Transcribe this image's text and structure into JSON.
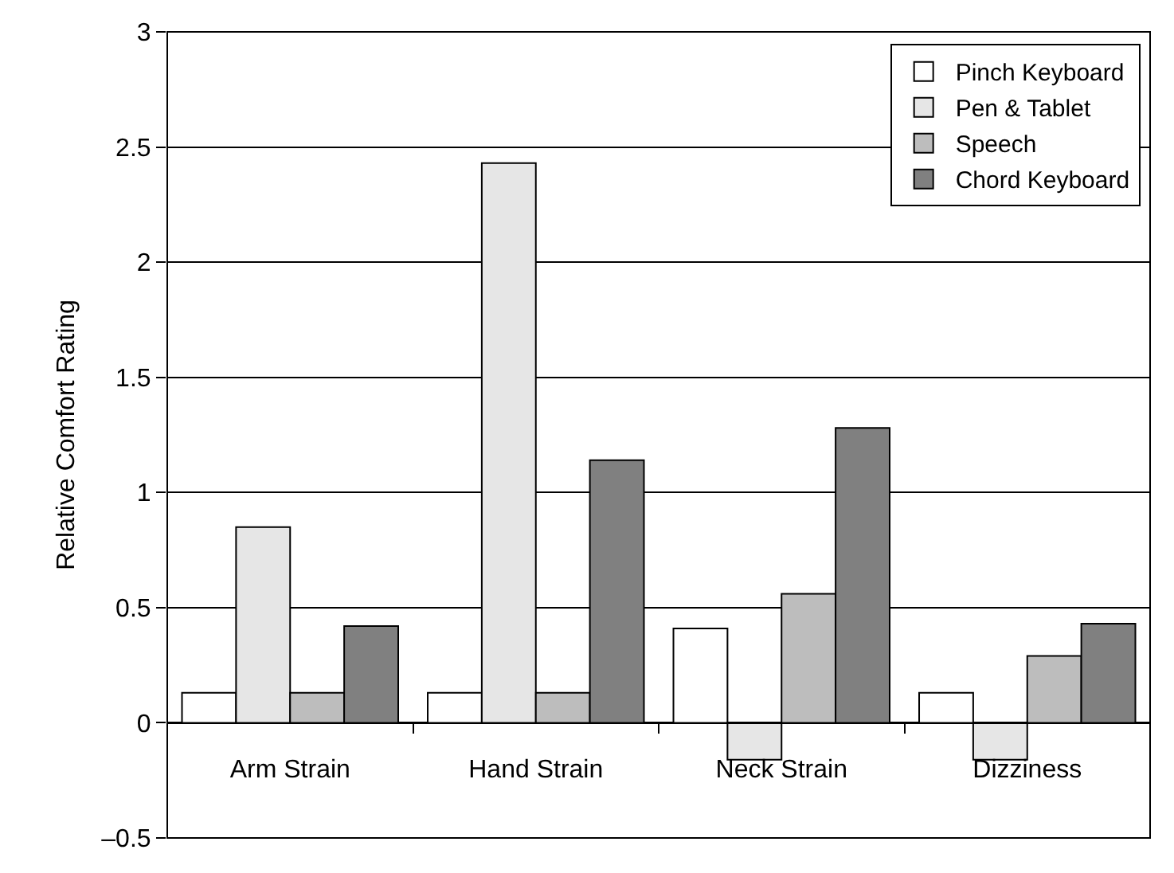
{
  "chart_data": {
    "type": "bar",
    "ylabel": "Relative Comfort Rating",
    "categories": [
      "Arm Strain",
      "Hand Strain",
      "Neck Strain",
      "Dizziness"
    ],
    "series": [
      {
        "name": "Pinch Keyboard",
        "color": "#ffffff",
        "values": [
          0.13,
          0.13,
          0.41,
          0.13
        ]
      },
      {
        "name": "Pen & Tablet",
        "color": "#e6e6e6",
        "values": [
          0.85,
          2.43,
          -0.16,
          -0.16
        ]
      },
      {
        "name": "Speech",
        "color": "#bdbdbd",
        "values": [
          0.13,
          0.13,
          0.56,
          0.29
        ]
      },
      {
        "name": "Chord Keyboard",
        "color": "#808080",
        "values": [
          0.42,
          1.14,
          1.28,
          0.43
        ]
      }
    ],
    "ylim": [
      -0.5,
      3
    ],
    "yticks": [
      {
        "value": -0.5,
        "label": "–0.5"
      },
      0,
      0.5,
      1,
      1.5,
      2,
      2.5,
      3
    ],
    "grid": "y",
    "legend": "top right"
  }
}
